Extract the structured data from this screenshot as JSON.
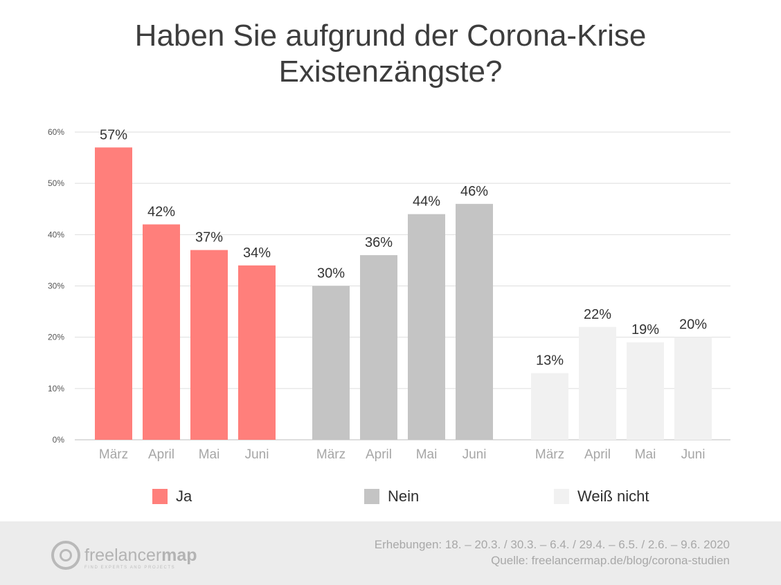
{
  "title_lines": [
    "Haben Sie aufgrund der Corona-Krise",
    "Existenzängste?"
  ],
  "chart_data": {
    "type": "bar",
    "title": "Haben Sie aufgrund der Corona-Krise Existenzängste?",
    "xlabel": "",
    "ylabel": "",
    "ylim": [
      0,
      60
    ],
    "y_ticks": [
      "0%",
      "10%",
      "20%",
      "30%",
      "40%",
      "50%",
      "60%"
    ],
    "y_tick_values": [
      0,
      10,
      20,
      30,
      40,
      50,
      60
    ],
    "grid": true,
    "legend_position": "bottom",
    "categories": [
      "März",
      "April",
      "Mai",
      "Juni"
    ],
    "series": [
      {
        "name": "Ja",
        "color": "#ff7f7b",
        "values": [
          57,
          42,
          37,
          34
        ],
        "labels": [
          "57%",
          "42%",
          "37%",
          "34%"
        ]
      },
      {
        "name": "Nein",
        "color": "#c4c4c4",
        "values": [
          30,
          36,
          44,
          46
        ],
        "labels": [
          "30%",
          "36%",
          "44%",
          "46%"
        ]
      },
      {
        "name": "Weiß nicht",
        "color": "#f1f1f1",
        "values": [
          13,
          22,
          19,
          20
        ],
        "labels": [
          "13%",
          "22%",
          "19%",
          "20%"
        ]
      }
    ]
  },
  "footer": {
    "logo_text_light": "freelancer",
    "logo_text_bold": "map",
    "logo_tagline": "FIND EXPERTS AND PROJECTS",
    "survey_dates": "Erhebungen: 18. – 20.3. / 30.3. – 6.4. / 29.4. – 6.5. / 2.6. – 9.6. 2020",
    "source": "Quelle: freelancermap.de/blog/corona-studien"
  }
}
